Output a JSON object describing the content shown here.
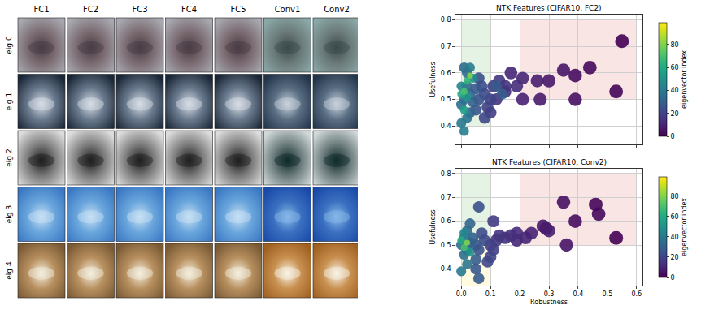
{
  "image_grid": {
    "columns": [
      "FC1",
      "FC2",
      "FC3",
      "FC4",
      "FC5",
      "Conv1",
      "Conv2"
    ],
    "rows": [
      "eig 0",
      "eig 1",
      "eig 2",
      "eig 3",
      "eig 4"
    ]
  },
  "chart_data": [
    {
      "type": "scatter",
      "title": "NTK Features (CIFAR10, FC2)",
      "ylabel": "Usefulness",
      "x": [
        0.55,
        0.53,
        0.44,
        0.39,
        0.39,
        0.35,
        0.3,
        0.27,
        0.26,
        0.21,
        0.21,
        0.17,
        0.19,
        0.15,
        0.15,
        0.12,
        0.13,
        0.11,
        0.1,
        0.09,
        0.1,
        0.08,
        0.08,
        0.07,
        0.06,
        0.06,
        0.05,
        0.05,
        0.12,
        0.14,
        0.04,
        0.03,
        0.03,
        0.02,
        0.02,
        0.01,
        0.01,
        0.0,
        0.02,
        0.0,
        0.03,
        0.01,
        0.0,
        0.04,
        0.02,
        0.01,
        0.0,
        0.02,
        0.01,
        0.03
      ],
      "y": [
        0.72,
        0.53,
        0.62,
        0.59,
        0.5,
        0.61,
        0.57,
        0.5,
        0.57,
        0.5,
        0.58,
        0.6,
        0.55,
        0.53,
        0.55,
        0.5,
        0.57,
        0.55,
        0.45,
        0.47,
        0.5,
        0.43,
        0.52,
        0.55,
        0.58,
        0.5,
        0.46,
        0.54,
        0.55,
        0.52,
        0.49,
        0.52,
        0.45,
        0.55,
        0.6,
        0.62,
        0.5,
        0.48,
        0.43,
        0.41,
        0.62,
        0.38,
        0.55,
        0.58,
        0.51,
        0.46,
        0.52,
        0.57,
        0.53,
        0.59
      ],
      "eigenvector_index": [
        0,
        1,
        2,
        3,
        4,
        5,
        6,
        7,
        8,
        9,
        10,
        11,
        12,
        13,
        14,
        15,
        16,
        17,
        18,
        19,
        20,
        21,
        22,
        23,
        24,
        25,
        26,
        27,
        28,
        29,
        30,
        31,
        32,
        33,
        34,
        35,
        36,
        37,
        38,
        40,
        41,
        42,
        45,
        48,
        50,
        55,
        60,
        65,
        70,
        80
      ],
      "xlim": [
        -0.02,
        0.62
      ],
      "ylim": [
        0.33,
        0.82
      ],
      "xticks": [
        {
          "value": 0,
          "label": "0.0"
        },
        0.1,
        0.2,
        0.3,
        0.4,
        0.5,
        0.6
      ],
      "yticks": [
        0.4,
        0.5,
        0.6,
        0.7,
        0.8
      ],
      "tick_labels": "y",
      "grid": true,
      "colorbar": {
        "title": "eigenvector index",
        "range": [
          0,
          99
        ],
        "ticks": [
          0,
          20,
          40,
          60,
          80
        ]
      },
      "regions": [
        {
          "x": [
            0,
            0.1
          ],
          "y": [
            0.4,
            0.8
          ],
          "color": "#2ca02c"
        },
        {
          "x": [
            0.2,
            0.6
          ],
          "y": [
            0.5,
            0.8
          ],
          "color": "#d62728"
        }
      ]
    },
    {
      "type": "scatter",
      "title": "NTK Features (CIFAR10, Conv2)",
      "xlabel": "Robustness",
      "ylabel": "Usefulness",
      "x": [
        0.53,
        0.46,
        0.47,
        0.39,
        0.35,
        0.36,
        0.29,
        0.28,
        0.3,
        0.24,
        0.22,
        0.19,
        0.19,
        0.17,
        0.15,
        0.13,
        0.12,
        0.11,
        0.1,
        0.11,
        0.1,
        0.09,
        0.08,
        0.07,
        0.06,
        0.06,
        0.05,
        0.05,
        0.06,
        0.05,
        0.04,
        0.03,
        0.03,
        0.02,
        0.02,
        0.01,
        0.01,
        0.0,
        0.02,
        0.0,
        0.01,
        0.03,
        0.0,
        0.01,
        0.02
      ],
      "y": [
        0.53,
        0.67,
        0.63,
        0.6,
        0.68,
        0.5,
        0.57,
        0.58,
        0.56,
        0.55,
        0.53,
        0.52,
        0.55,
        0.54,
        0.53,
        0.54,
        0.52,
        0.6,
        0.5,
        0.48,
        0.45,
        0.43,
        0.52,
        0.55,
        0.66,
        0.48,
        0.5,
        0.4,
        0.36,
        0.44,
        0.53,
        0.51,
        0.59,
        0.48,
        0.56,
        0.53,
        0.46,
        0.5,
        0.42,
        0.39,
        0.55,
        0.47,
        0.52,
        0.49,
        0.51
      ],
      "eigenvector_index": [
        0,
        1,
        2,
        3,
        4,
        5,
        6,
        7,
        8,
        9,
        10,
        11,
        12,
        13,
        14,
        15,
        16,
        17,
        18,
        19,
        20,
        21,
        22,
        23,
        24,
        25,
        26,
        27,
        28,
        29,
        30,
        31,
        32,
        33,
        34,
        35,
        36,
        37,
        38,
        40,
        45,
        50,
        60,
        70,
        80
      ],
      "xlim": [
        -0.02,
        0.62
      ],
      "ylim": [
        0.33,
        0.82
      ],
      "xticks": [
        {
          "value": 0,
          "label": "0.0"
        },
        0.1,
        0.2,
        0.3,
        0.4,
        0.5,
        0.6
      ],
      "yticks": [
        0.4,
        0.5,
        0.6,
        0.7,
        0.8
      ],
      "grid": true,
      "colorbar": {
        "title": "eigenvector index",
        "range": [
          0,
          99
        ],
        "ticks": [
          0,
          20,
          40,
          60,
          80
        ]
      },
      "regions": [
        {
          "x": [
            0,
            0.1
          ],
          "y": [
            0.5,
            0.8
          ],
          "color": "#2ca02c"
        },
        {
          "x": [
            0,
            0.1
          ],
          "y": [
            0.33,
            0.5
          ],
          "color": "#ffd700"
        },
        {
          "x": [
            0.2,
            0.6
          ],
          "y": [
            0.5,
            0.8
          ],
          "color": "#d62728"
        }
      ]
    }
  ]
}
